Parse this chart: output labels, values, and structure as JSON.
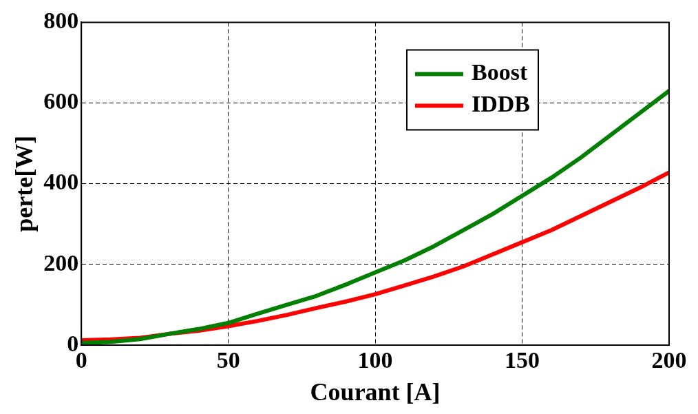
{
  "chart_data": {
    "type": "line",
    "xlabel": "Courant [A]",
    "ylabel": "perte[W]",
    "x": [
      0,
      10,
      20,
      30,
      40,
      50,
      60,
      70,
      80,
      90,
      100,
      110,
      120,
      130,
      140,
      150,
      160,
      170,
      180,
      190,
      200
    ],
    "series": [
      {
        "name": "Boost",
        "color": "#007f00",
        "values": [
          5,
          8,
          15,
          28,
          40,
          55,
          78,
          100,
          122,
          150,
          180,
          210,
          245,
          285,
          325,
          370,
          415,
          465,
          520,
          575,
          630
        ]
      },
      {
        "name": "IDDB",
        "color": "#ff0000",
        "values": [
          12,
          14,
          18,
          28,
          36,
          47,
          60,
          75,
          92,
          108,
          126,
          148,
          170,
          195,
          225,
          255,
          285,
          320,
          355,
          390,
          428
        ]
      }
    ],
    "xlim": [
      0,
      200
    ],
    "xticks": [
      0,
      50,
      100,
      150,
      200
    ],
    "ylim": [
      0,
      800
    ],
    "yticks": [
      0,
      200,
      400,
      600,
      800
    ],
    "grid": true,
    "legend": "top right",
    "marker": "none",
    "line_style": "solid"
  }
}
